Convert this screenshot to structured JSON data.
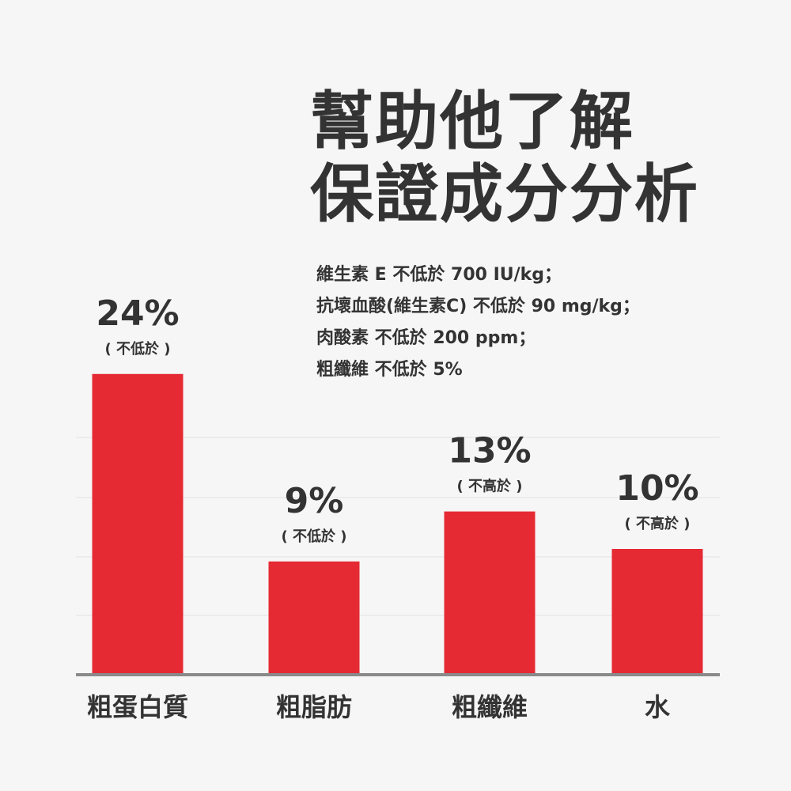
{
  "headline": {
    "line1": "幫助他了解",
    "line2": "保證成分分析"
  },
  "notes": [
    "維生素 E 不低於 700 IU/kg；",
    "抗壞血酸(維生素C) 不低於 90 mg/kg；",
    "肉酸素 不低於 200 ppm；",
    "粗纖維 不低於 5%"
  ],
  "colors": {
    "bar": "#e52a34",
    "text": "#333333",
    "axis": "#8a8a8a",
    "grid": "#e9e9e9",
    "background": "#f6f6f6"
  },
  "chart_data": {
    "type": "bar",
    "categories": [
      "粗蛋白質",
      "粗脂肪",
      "粗纖維",
      "水"
    ],
    "values": [
      24,
      9,
      13,
      10
    ],
    "value_labels": [
      "24%",
      "9%",
      "13%",
      "10%"
    ],
    "qualifiers": [
      "( 不低於 )",
      "( 不低於 )",
      "( 不高於 )",
      "( 不高於 )"
    ],
    "title": "",
    "xlabel": "",
    "ylabel": "",
    "grid": true,
    "legend": "none"
  }
}
